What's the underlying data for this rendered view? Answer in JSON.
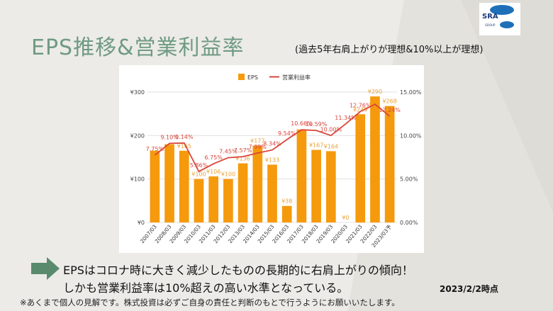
{
  "page": {
    "title": "EPS推移&営業利益率",
    "subtitle": "(過去5年右肩上がりが理想&10%以上が理想)",
    "logo_text": "SRA",
    "logo_sub": "GROUP",
    "comment_line1": "EPSはコロナ時に大きく減少したものの長期的に右肩上がりの傾向！",
    "comment_line2": "しかも営業利益率は10%超えの高い水準となっている。",
    "date": "2023/2/2時点",
    "note": "※あくまで個人の見解です。株式投資は必ずご自身の責任と判断のもとで行うようにお願いいたします。",
    "accent_color": "#6f9a82",
    "arrow_color": "#5a8a6e",
    "arrow_icon": "right-arrow-icon"
  },
  "chart_data": {
    "type": "bar",
    "categories": [
      "2007/03",
      "2008/03",
      "2009/03",
      "2010/03",
      "2011/03",
      "2012/03",
      "2013/03",
      "2014/03",
      "2015/03",
      "2016/03",
      "2017/03",
      "2018/03",
      "2019/03",
      "2020/03",
      "2021/03",
      "2022/03",
      "2023/03予"
    ],
    "series": [
      {
        "name": "EPS",
        "type": "bar",
        "axis": "left",
        "color": "#f59a0c",
        "values": [
          165,
          180,
          165,
          100,
          106,
          100,
          136,
          177,
          133,
          38,
          214,
          167,
          164,
          0,
          249,
          290,
          268
        ],
        "labels": [
          "",
          "",
          "¥165",
          "¥100",
          "¥106",
          "¥100",
          "¥136",
          "¥177",
          "¥133",
          "¥38",
          "",
          "¥167",
          "¥164",
          "¥0",
          "¥249",
          "¥290",
          "¥268"
        ]
      },
      {
        "name": "営業利益率",
        "type": "line",
        "axis": "right",
        "color": "#d9453a",
        "values": [
          7.75,
          9.1,
          9.14,
          5.86,
          6.75,
          7.45,
          7.57,
          7.99,
          8.34,
          9.54,
          10.66,
          10.59,
          10.0,
          11.34,
          12.76,
          13.6,
          12.24
        ],
        "labels": [
          "7.75%",
          "9.10%",
          "9.14%",
          "5.86%",
          "6.75%",
          "7.45%",
          "7.57%",
          "7.99%",
          "8.34%",
          "9.54%",
          "10.66%",
          "10.59%",
          "10.00%",
          "11.34%",
          "12.76%",
          "",
          "12.24%"
        ]
      }
    ],
    "y_left": {
      "ticks": [
        "¥0",
        "¥100",
        "¥200",
        "¥300"
      ],
      "range": [
        0,
        300
      ]
    },
    "y_right": {
      "ticks": [
        "0.00%",
        "5.00%",
        "10.00%",
        "15.00%"
      ],
      "range": [
        0,
        15
      ]
    },
    "legend": "top-center",
    "grid": true
  }
}
